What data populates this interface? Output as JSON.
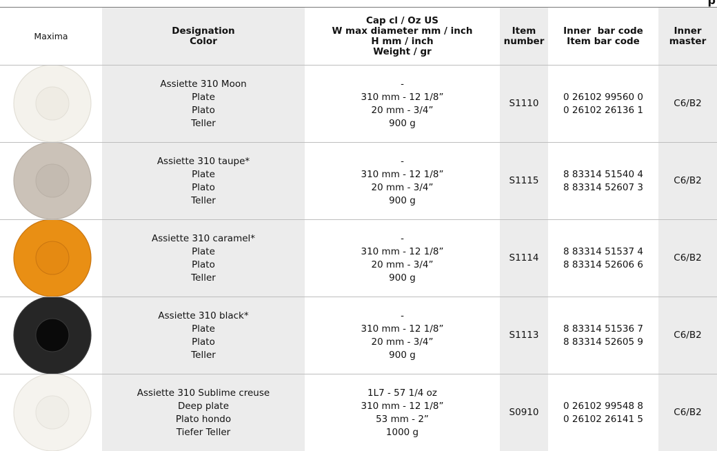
{
  "top_right_fragment": "p",
  "table": {
    "brand": "Maxima",
    "header": {
      "designation": [
        "Designation",
        "Color"
      ],
      "dimensions": [
        "Cap cl / Oz US",
        "W max diameter mm / inch",
        "H mm / inch",
        "Weight / gr"
      ],
      "item": [
        "Item",
        "number"
      ],
      "barcodes": [
        "Inner  bar code",
        "Item bar code"
      ],
      "master": [
        "Inner",
        "master"
      ]
    },
    "rows": [
      {
        "designation": [
          "Assiette 310 Moon",
          "Plate",
          "Plato",
          "Teller"
        ],
        "dimensions": [
          "-",
          "310 mm - 12 1/8”",
          "20 mm - 3/4”",
          "900 g"
        ],
        "item": "S1110",
        "barcodes": [
          "0 26102 99560 0",
          "0 26102 26136 1"
        ],
        "master": "C6/B2"
      },
      {
        "designation": [
          "Assiette 310 taupe*",
          "Plate",
          "Plato",
          "Teller"
        ],
        "dimensions": [
          "-",
          "310 mm - 12 1/8”",
          "20 mm - 3/4”",
          "900 g"
        ],
        "item": "S1115",
        "barcodes": [
          "8 83314 51540 4",
          "8 83314 52607 3"
        ],
        "master": "C6/B2"
      },
      {
        "designation": [
          "Assiette 310 caramel*",
          "Plate",
          "Plato",
          "Teller"
        ],
        "dimensions": [
          "-",
          "310 mm - 12 1/8”",
          "20 mm - 3/4”",
          "900 g"
        ],
        "item": "S1114",
        "barcodes": [
          "8 83314 51537 4",
          "8 83314 52606 6"
        ],
        "master": "C6/B2"
      },
      {
        "designation": [
          "Assiette 310 black*",
          "Plate",
          "Plato",
          "Teller"
        ],
        "dimensions": [
          "-",
          "310 mm - 12 1/8”",
          "20 mm - 3/4”",
          "900 g"
        ],
        "item": "S1113",
        "barcodes": [
          "8 83314 51536 7",
          "8 83314 52605 9"
        ],
        "master": "C6/B2"
      },
      {
        "designation": [
          "Assiette 310 Sublime creuse",
          "Deep plate",
          "Plato hondo",
          "Tiefer Teller"
        ],
        "dimensions": [
          "1L7 - 57 1/4 oz",
          "310 mm - 12 1/8”",
          "53 mm - 2”",
          "1000 g"
        ],
        "item": "S0910",
        "barcodes": [
          "0 26102 99548 8",
          "0 26102 26141 5"
        ],
        "master": "C6/B2"
      }
    ]
  }
}
